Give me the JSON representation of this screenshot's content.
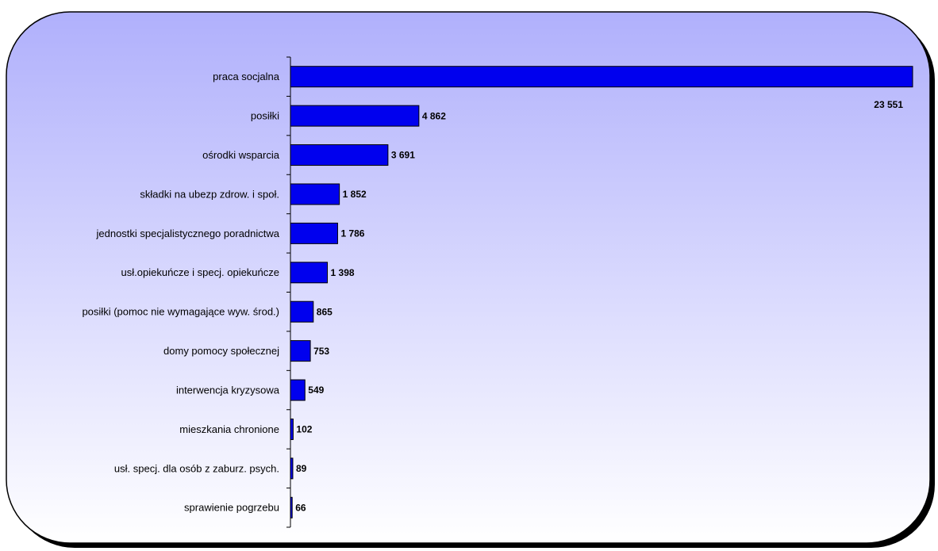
{
  "chart_data": {
    "type": "bar",
    "orientation": "horizontal",
    "categories": [
      "praca socjalna",
      "posiłki",
      "ośrodki wsparcia",
      "składki na ubezp zdrow. i społ.",
      "jednostki specjalistycznego poradnictwa",
      "usł.opiekuńcze i specj. opiekuńcze",
      "posiłki (pomoc nie wymagające wyw. środ.)",
      "domy pomocy społecznej",
      "interwencja kryzysowa",
      "mieszkania chronione",
      "usł. specj. dla osób z zaburz. psych.",
      "sprawienie pogrzebu"
    ],
    "values": [
      23551,
      4862,
      3691,
      1852,
      1786,
      1398,
      865,
      753,
      549,
      102,
      89,
      66
    ],
    "value_labels": [
      "23 551",
      "4 862",
      "3 691",
      "1 852",
      "1 786",
      "1 398",
      "865",
      "753",
      "549",
      "102",
      "89",
      "66"
    ],
    "color": "#0000ee",
    "xlim": [
      0,
      23551
    ]
  }
}
